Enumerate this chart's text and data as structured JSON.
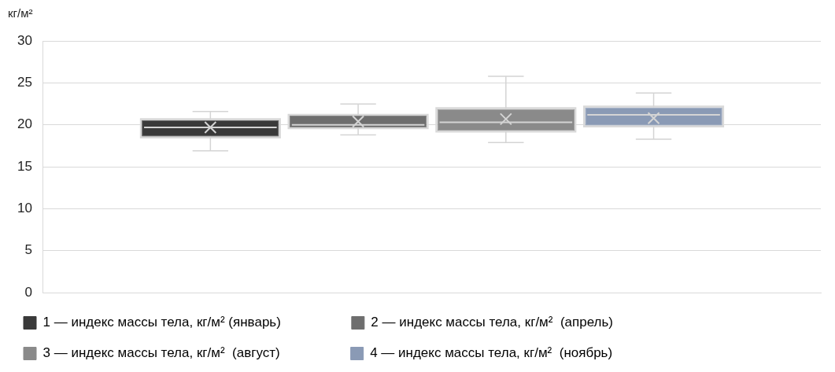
{
  "chart_data": {
    "type": "box",
    "ylabel": "кг/м²",
    "categories": [
      null
    ],
    "series": [
      {
        "name": "1 — индекс массы тела, кг/м² (январь)",
        "color": "#3a3a3a",
        "boxes": [
          {
            "low": 16.9,
            "q1": 18.6,
            "median": 19.7,
            "q3": 20.6,
            "high": 21.6,
            "mean": 19.7
          }
        ]
      },
      {
        "name": "2 — индекс массы тела, кг/м²  (апрель)",
        "color": "#6e6e6e",
        "boxes": [
          {
            "low": 18.8,
            "q1": 19.7,
            "median": 20.0,
            "q3": 21.1,
            "high": 22.5,
            "mean": 20.4
          }
        ]
      },
      {
        "name": "3 — индекс массы тела, кг/м²  (август)",
        "color": "#8a8a8a",
        "boxes": [
          {
            "low": 17.9,
            "q1": 19.3,
            "median": 20.3,
            "q3": 21.9,
            "high": 25.8,
            "mean": 20.7
          }
        ]
      },
      {
        "name": "4 — индекс массы тела, кг/м²  (ноябрь)",
        "color": "#8a9ab5",
        "boxes": [
          {
            "low": 18.3,
            "q1": 19.9,
            "median": 21.2,
            "q3": 22.1,
            "high": 23.8,
            "mean": 20.8
          }
        ]
      }
    ],
    "ylim": [
      0,
      30
    ],
    "yticks": [
      0,
      5,
      10,
      15,
      20,
      25,
      30
    ],
    "grid": "y",
    "tick_labels": "y",
    "legend": "bottom"
  }
}
